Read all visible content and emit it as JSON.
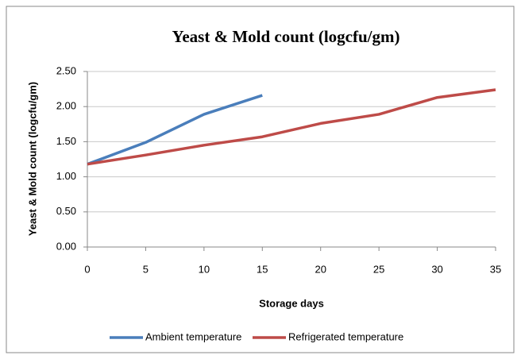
{
  "chart_data": {
    "type": "line",
    "title": "Yeast & Mold count (logcfu/gm)",
    "x_label": "Storage days",
    "y_label": "Yeast & Mold count (logcfu/gm)",
    "x": [
      0,
      5,
      10,
      15,
      20,
      25,
      30,
      35
    ],
    "series": [
      {
        "name": "Ambient temperature",
        "color": "#4a7ebb",
        "values": [
          1.18,
          1.49,
          1.89,
          2.16,
          null,
          null,
          null,
          null
        ]
      },
      {
        "name": "Refrigerated temperature",
        "color": "#be4b48",
        "values": [
          1.18,
          1.31,
          1.45,
          1.57,
          1.76,
          1.89,
          2.13,
          2.24
        ]
      }
    ],
    "xlim": [
      0,
      35
    ],
    "xticks": [
      0,
      5,
      10,
      15,
      20,
      25,
      30,
      35
    ],
    "ylim": [
      0,
      2.5
    ],
    "yticks": [
      {
        "value": 0,
        "label": "0.00"
      },
      {
        "value": 0.5,
        "label": "0.50"
      },
      {
        "value": 1,
        "label": "1.00"
      },
      {
        "value": 1.5,
        "label": "1.50"
      },
      {
        "value": 2,
        "label": "2.00"
      },
      {
        "value": 2.5,
        "label": "2.50"
      }
    ],
    "grid": true,
    "legend": "bottom"
  }
}
